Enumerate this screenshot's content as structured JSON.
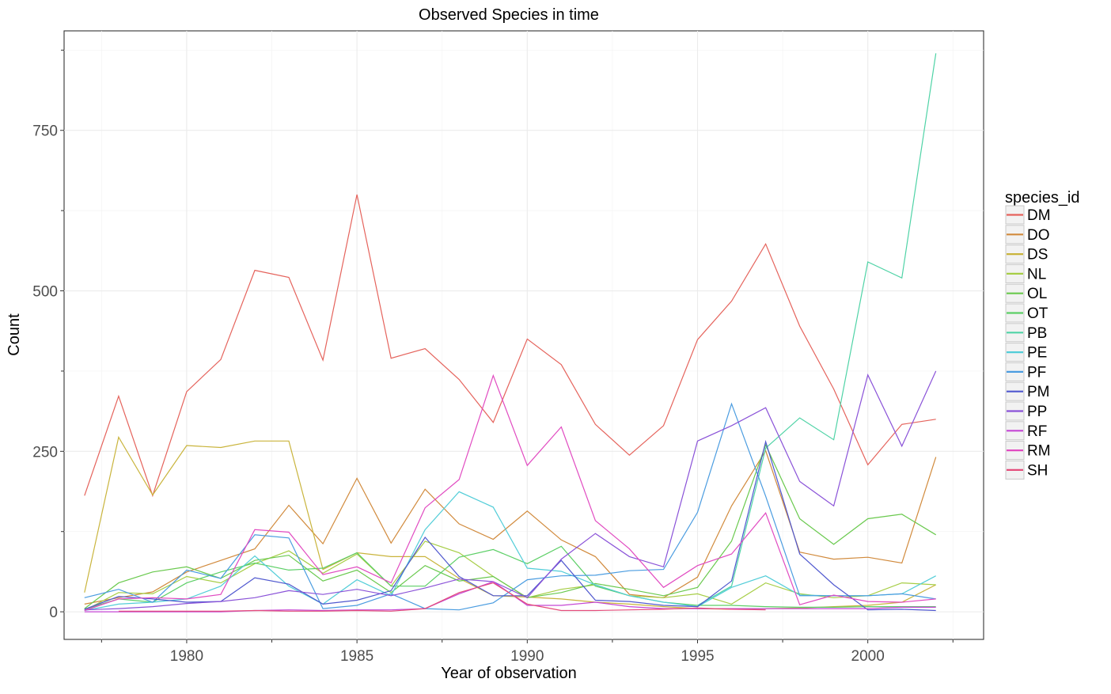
{
  "chart_data": {
    "type": "line",
    "title": "Observed Species in time",
    "xlabel": "Year of observation",
    "ylabel": "Count",
    "xlim": [
      1976.4,
      2003.4
    ],
    "ylim": [
      -43,
      905
    ],
    "x_ticks": [
      1980,
      1985,
      1990,
      1995,
      2000
    ],
    "x_tick_labels": [
      "1980",
      "1985",
      "1990",
      "1995",
      "2000"
    ],
    "y_ticks": [
      0,
      250,
      500,
      750
    ],
    "y_tick_labels": [
      "0",
      "250",
      "500",
      "750"
    ],
    "grid": true,
    "legend": {
      "title": "species_id",
      "position": "right"
    },
    "series": [
      {
        "name": "DM",
        "color": "#e5635c",
        "x": [
          1977,
          1978,
          1979,
          1980,
          1981,
          1982,
          1983,
          1984,
          1985,
          1986,
          1987,
          1988,
          1989,
          1990,
          1991,
          1992,
          1993,
          1994,
          1995,
          1996,
          1997,
          1998,
          1999,
          2000,
          2001,
          2002
        ],
        "y": [
          181,
          336,
          181,
          343,
          393,
          532,
          521,
          392,
          650,
          395,
          410,
          362,
          295,
          425,
          385,
          292,
          244,
          290,
          424,
          484,
          573,
          445,
          347,
          229,
          292,
          300
        ]
      },
      {
        "name": "DO",
        "color": "#d18a3c",
        "x": [
          1977,
          1978,
          1979,
          1980,
          1981,
          1982,
          1983,
          1984,
          1985,
          1986,
          1987,
          1988,
          1989,
          1990,
          1991,
          1992,
          1993,
          1994,
          1995,
          1996,
          1997,
          1998,
          1999,
          2000,
          2001,
          2002
        ],
        "y": [
          12,
          22,
          31,
          62,
          80,
          98,
          166,
          106,
          208,
          107,
          191,
          137,
          113,
          157,
          112,
          86,
          27,
          22,
          54,
          165,
          251,
          93,
          82,
          85,
          76,
          241
        ]
      },
      {
        "name": "DS",
        "color": "#c9b43c",
        "x": [
          1977,
          1978,
          1979,
          1980,
          1981,
          1982,
          1983,
          1984,
          1985,
          1986,
          1987,
          1988,
          1989,
          1990,
          1991,
          1992,
          1993,
          1994,
          1995,
          1996,
          1997,
          1998,
          1999,
          2000,
          2001,
          2002
        ],
        "y": [
          30,
          272,
          182,
          259,
          256,
          266,
          266,
          66,
          92,
          86,
          86,
          52,
          25,
          23,
          20,
          15,
          12,
          8,
          5,
          4,
          5,
          6,
          8,
          10,
          15,
          42
        ]
      },
      {
        "name": "NL",
        "color": "#a6cd45",
        "x": [
          1977,
          1978,
          1979,
          1980,
          1981,
          1982,
          1983,
          1984,
          1985,
          1986,
          1987,
          1988,
          1989,
          1990,
          1991,
          1992,
          1993,
          1994,
          1995,
          1996,
          1997,
          1998,
          1999,
          2000,
          2001,
          2002
        ],
        "y": [
          2,
          30,
          28,
          55,
          45,
          75,
          95,
          60,
          90,
          40,
          110,
          92,
          55,
          22,
          35,
          42,
          25,
          22,
          28,
          12,
          45,
          28,
          22,
          25,
          45,
          42
        ]
      },
      {
        "name": "OL",
        "color": "#69c94d",
        "x": [
          1977,
          1978,
          1979,
          1980,
          1981,
          1982,
          1983,
          1984,
          1985,
          1986,
          1987,
          1988,
          1989,
          1990,
          1991,
          1992,
          1993,
          1994,
          1995,
          1996,
          1997,
          1998,
          1999,
          2000,
          2001,
          2002
        ],
        "y": [
          5,
          45,
          62,
          70,
          52,
          80,
          88,
          48,
          65,
          30,
          72,
          48,
          55,
          22,
          30,
          44,
          35,
          25,
          38,
          110,
          260,
          145,
          105,
          145,
          152,
          120
        ]
      },
      {
        "name": "OT",
        "color": "#5ccf66",
        "x": [
          1977,
          1978,
          1979,
          1980,
          1981,
          1982,
          1983,
          1984,
          1985,
          1986,
          1987,
          1988,
          1989,
          1990,
          1991,
          1992,
          1993,
          1994,
          1995,
          1996,
          1997,
          1998,
          1999,
          2000,
          2001,
          2002
        ],
        "y": [
          4,
          20,
          15,
          45,
          62,
          76,
          65,
          68,
          92,
          40,
          40,
          85,
          97,
          75,
          102,
          40,
          25,
          15,
          10,
          10,
          8,
          7,
          7,
          8,
          8,
          8
        ]
      },
      {
        "name": "PB",
        "color": "#4fd3a6",
        "x": [
          1995,
          1996,
          1997,
          1998,
          1999,
          2000,
          2001,
          2002
        ],
        "y": [
          10,
          40,
          255,
          302,
          268,
          545,
          520,
          870
        ]
      },
      {
        "name": "PE",
        "color": "#52cdd8",
        "x": [
          1977,
          1978,
          1979,
          1980,
          1981,
          1982,
          1983,
          1984,
          1985,
          1986,
          1987,
          1988,
          1989,
          1990,
          1991,
          1992,
          1993,
          1994,
          1995,
          1996,
          1997,
          1998,
          1999,
          2000,
          2001,
          2002
        ],
        "y": [
          2,
          12,
          15,
          20,
          40,
          87,
          40,
          12,
          50,
          25,
          128,
          187,
          163,
          68,
          63,
          42,
          25,
          15,
          8,
          38,
          56,
          26,
          25,
          25,
          28,
          56
        ]
      },
      {
        "name": "PF",
        "color": "#4a9ce0",
        "x": [
          1977,
          1978,
          1979,
          1980,
          1981,
          1982,
          1983,
          1984,
          1985,
          1986,
          1987,
          1988,
          1989,
          1990,
          1991,
          1992,
          1993,
          1994,
          1995,
          1996,
          1997,
          1998,
          1999,
          2000,
          2001,
          2002
        ],
        "y": [
          22,
          35,
          15,
          65,
          52,
          120,
          115,
          5,
          10,
          28,
          5,
          3,
          14,
          50,
          56,
          57,
          64,
          66,
          155,
          324,
          180,
          25,
          25,
          25,
          28,
          20
        ]
      },
      {
        "name": "PM",
        "color": "#5058cf",
        "x": [
          1977,
          1978,
          1979,
          1980,
          1981,
          1982,
          1983,
          1984,
          1985,
          1986,
          1987,
          1988,
          1989,
          1990,
          1991,
          1992,
          1993,
          1994,
          1995,
          1996,
          1997,
          1998,
          1999,
          2000,
          2001,
          2002
        ],
        "y": [
          4,
          24,
          20,
          15,
          16,
          53,
          43,
          12,
          18,
          33,
          116,
          55,
          25,
          25,
          80,
          18,
          16,
          10,
          8,
          48,
          265,
          90,
          42,
          3,
          4,
          2
        ]
      },
      {
        "name": "PP",
        "color": "#8a52d8",
        "x": [
          1977,
          1978,
          1979,
          1980,
          1981,
          1982,
          1983,
          1984,
          1985,
          1986,
          1987,
          1988,
          1989,
          1990,
          1991,
          1992,
          1993,
          1994,
          1995,
          1996,
          1997,
          1998,
          1999,
          2000,
          2001,
          2002
        ],
        "y": [
          3,
          5,
          8,
          13,
          16,
          22,
          33,
          27,
          35,
          25,
          37,
          51,
          47,
          22,
          82,
          122,
          86,
          70,
          266,
          290,
          318,
          203,
          165,
          369,
          258,
          375
        ]
      },
      {
        "name": "RF",
        "color": "#c546d4",
        "x": [
          1977,
          1978,
          1979,
          1980,
          1981,
          1982,
          1983,
          1984,
          1985,
          1986,
          1987,
          1988,
          1989,
          1990,
          1991,
          1992,
          1993,
          1994,
          1995,
          1996,
          1997,
          1998,
          1999,
          2000,
          2001,
          2002
        ],
        "y": [
          0,
          0,
          0,
          0,
          0,
          2,
          3,
          2,
          3,
          3,
          5,
          28,
          47,
          10,
          10,
          15,
          8,
          5,
          5,
          5,
          5,
          5,
          5,
          5,
          7,
          7
        ]
      },
      {
        "name": "RM",
        "color": "#e14bc1",
        "x": [
          1977,
          1978,
          1979,
          1980,
          1981,
          1982,
          1983,
          1984,
          1985,
          1986,
          1987,
          1988,
          1989,
          1990,
          1991,
          1992,
          1993,
          1994,
          1995,
          1996,
          1997,
          1998,
          1999,
          2000,
          2001,
          2002
        ],
        "y": [
          2,
          20,
          22,
          20,
          27,
          128,
          124,
          58,
          70,
          45,
          162,
          206,
          368,
          228,
          288,
          142,
          98,
          38,
          72,
          90,
          154,
          11,
          26,
          16,
          15,
          20
        ]
      },
      {
        "name": "SH",
        "color": "#e44d7b",
        "x": [
          1978,
          1979,
          1980,
          1981,
          1982,
          1983,
          1984,
          1985,
          1986,
          1987,
          1988,
          1989,
          1990,
          1991,
          1992,
          1993,
          1994,
          1995,
          1996,
          1997
        ],
        "y": [
          1,
          1,
          1,
          1,
          2,
          1,
          1,
          2,
          1,
          5,
          30,
          45,
          12,
          2,
          2,
          3,
          4,
          6,
          4,
          3
        ]
      }
    ]
  }
}
